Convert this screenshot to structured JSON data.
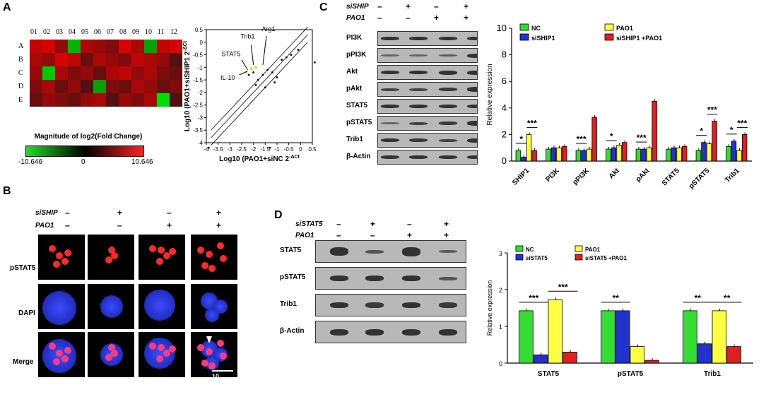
{
  "panels": {
    "A": "A",
    "B": "B",
    "C": "C",
    "D": "D"
  },
  "heatmap": {
    "cols": [
      "01",
      "02",
      "03",
      "04",
      "05",
      "06",
      "07",
      "08",
      "09",
      "10",
      "11",
      "12"
    ],
    "rows": [
      "A",
      "B",
      "C",
      "D",
      "E"
    ],
    "colorbar_title": "Magnitude of log2(Fold Change)",
    "cb_min": "-10.646",
    "cb_mid": "0",
    "cb_max": "10.646",
    "colors": {
      "low": "#22dd22",
      "mid": "#000000",
      "high": "#ff2222"
    }
  },
  "scatter": {
    "xlabel": "Log10 (PAO1+siNC 2",
    "xsup": "-ΔCt",
    "ylabel": "Log10 (PAO1+siSHIP1 2",
    "ysup": "-ΔCt",
    "xticks": [
      "-4",
      "-3.5",
      "-3",
      "-2.5",
      "-2",
      "-1.5",
      "-1",
      "-0.5",
      "0",
      "0.5"
    ],
    "yticks": [
      "0.5",
      "0",
      "-0.5",
      "-1",
      "-1.5",
      "-2",
      "-2.5",
      "-3",
      "-3.5",
      "-4"
    ],
    "labels": {
      "stat5": "STAT5",
      "trib1": "Trib1",
      "arg1": "Arg1",
      "il10": "IL-10"
    }
  },
  "blotB": {
    "cond_names": [
      "siSHIP",
      "PAO1"
    ],
    "conds": [
      [
        "–",
        "+",
        "–",
        "+"
      ],
      [
        "–",
        "–",
        "+",
        "+"
      ]
    ],
    "rows": [
      "pSTAT5",
      "DAPI",
      "Merge"
    ],
    "scale": "10 μm"
  },
  "blotC": {
    "cond_names": [
      "siSHIP",
      "PAO1"
    ],
    "conds": [
      [
        "–",
        "+",
        "–",
        "+"
      ],
      [
        "–",
        "–",
        "+",
        "+"
      ]
    ],
    "rows": [
      "PI3K",
      "pPI3K",
      "Akt",
      "pAkt",
      "STAT5",
      "pSTAT5",
      "Trib1",
      "β-Actin"
    ]
  },
  "blotD": {
    "cond_names": [
      "siSTAT5",
      "PAO1"
    ],
    "conds": [
      [
        "–",
        "+",
        "–",
        "+"
      ],
      [
        "–",
        "–",
        "+",
        "+"
      ]
    ],
    "rows": [
      "STAT5",
      "pSTAT5",
      "Trib1",
      "β-Actin"
    ]
  },
  "chart_data": [
    {
      "type": "bar",
      "ylabel": "Relative expression",
      "ylim": [
        0,
        10
      ],
      "yticks": [
        0,
        2,
        4,
        6,
        8,
        10
      ],
      "categories": [
        "SHIP1",
        "PI3K",
        "pPI3K",
        "Akt",
        "pAkt",
        "STAT5",
        "pSTAT5",
        "Trib1"
      ],
      "series": [
        {
          "name": "NC",
          "color": "#33dd33",
          "values": [
            0.8,
            0.9,
            0.8,
            0.9,
            0.9,
            0.9,
            0.8,
            1.1
          ]
        },
        {
          "name": "siSHIP1",
          "color": "#2233cc",
          "values": [
            0.3,
            1.0,
            0.8,
            1.0,
            0.9,
            1.0,
            1.4,
            1.5
          ]
        },
        {
          "name": "PAO1",
          "color": "#ffff44",
          "values": [
            2.0,
            1.0,
            0.9,
            1.2,
            1.0,
            1.0,
            1.3,
            0.8
          ]
        },
        {
          "name": "siSHIP1 +PAO1",
          "color": "#e02020",
          "values": [
            0.8,
            1.1,
            3.3,
            1.4,
            4.5,
            1.1,
            3.0,
            2.0
          ]
        }
      ],
      "significance": [
        {
          "category": "SHIP1",
          "text": "*"
        },
        {
          "category": "SHIP1",
          "text": "***"
        },
        {
          "category": "pPI3K",
          "text": "***"
        },
        {
          "category": "Akt",
          "text": "*"
        },
        {
          "category": "pAkt",
          "text": "***"
        },
        {
          "category": "pSTAT5",
          "text": "*"
        },
        {
          "category": "pSTAT5",
          "text": "***"
        },
        {
          "category": "Trib1",
          "text": "*"
        },
        {
          "category": "Trib1",
          "text": "***"
        }
      ],
      "legend": "top"
    },
    {
      "type": "bar",
      "ylabel": "Relative expression",
      "ylim": [
        0,
        2.0
      ],
      "yticks": [
        "0",
        "1",
        "2",
        "3"
      ],
      "categories": [
        "STAT5",
        "pSTAT5",
        "Trib1"
      ],
      "series": [
        {
          "name": "NC",
          "color": "#33dd33",
          "values": [
            0.95,
            0.95,
            0.95
          ]
        },
        {
          "name": "siSTAT5",
          "color": "#2233cc",
          "values": [
            0.15,
            0.95,
            0.35
          ]
        },
        {
          "name": "PAO1",
          "color": "#ffff44",
          "values": [
            1.15,
            0.3,
            0.95
          ]
        },
        {
          "name": "siSTAT5 +PAO1",
          "color": "#e02020",
          "values": [
            0.2,
            0.05,
            0.3
          ]
        }
      ],
      "significance": [
        {
          "category": "STAT5",
          "text": "***"
        },
        {
          "category": "STAT5",
          "text": "***"
        },
        {
          "category": "pSTAT5",
          "text": "**"
        },
        {
          "category": "Trib1",
          "text": "**"
        },
        {
          "category": "Trib1",
          "text": "**"
        }
      ],
      "legend": "top"
    }
  ]
}
